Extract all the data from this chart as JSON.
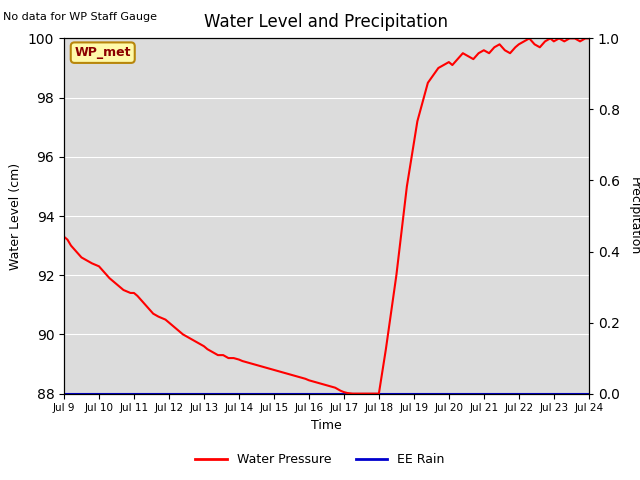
{
  "title": "Water Level and Precipitation",
  "no_data_text": "No data for WP Staff Gauge",
  "wp_met_label": "WP_met",
  "xlabel": "Time",
  "ylabel_left": "Water Level (cm)",
  "ylabel_right": "Precipitation",
  "ylim_left": [
    88,
    100
  ],
  "ylim_right": [
    0.0,
    1.0
  ],
  "yticks_left": [
    88,
    90,
    92,
    94,
    96,
    98,
    100
  ],
  "yticks_right": [
    0.0,
    0.2,
    0.4,
    0.6,
    0.8,
    1.0
  ],
  "xtick_labels": [
    "Jul 9",
    "Jul 10",
    "Jul 11",
    "Jul 12",
    "Jul 13",
    "Jul 14",
    "Jul 15",
    "Jul 16",
    "Jul 17",
    "Jul 18",
    "Jul 19",
    "Jul 20",
    "Jul 21",
    "Jul 22",
    "Jul 23",
    "Jul 24"
  ],
  "line_color_red": "#FF0000",
  "line_color_blue": "#0000CD",
  "bg_color": "#DCDCDC",
  "wp_met_box_color": "#FFFAAA",
  "wp_met_border_color": "#B8860B",
  "wp_met_text_color": "#8B0000",
  "legend_label_red": "Water Pressure",
  "legend_label_blue": "EE Rain",
  "wp_x": [
    0.0,
    0.1,
    0.2,
    0.35,
    0.5,
    0.65,
    0.8,
    1.0,
    1.15,
    1.3,
    1.5,
    1.7,
    1.9,
    2.0,
    2.1,
    2.25,
    2.4,
    2.55,
    2.7,
    2.9,
    3.0,
    3.1,
    3.25,
    3.4,
    3.55,
    3.7,
    3.85,
    4.0,
    4.1,
    4.25,
    4.4,
    4.55,
    4.7,
    4.85,
    5.0,
    5.1,
    5.25,
    5.4,
    5.55,
    5.7,
    5.85,
    6.0,
    6.15,
    6.3,
    6.45,
    6.6,
    6.75,
    6.9,
    7.0,
    7.15,
    7.3,
    7.45,
    7.6,
    7.75,
    7.9,
    8.0,
    8.1,
    8.25,
    8.4,
    8.6,
    8.8,
    9.0,
    9.2,
    9.5,
    9.8,
    10.1,
    10.4,
    10.7,
    11.0,
    11.1,
    11.25,
    11.4,
    11.55,
    11.7,
    11.85,
    12.0,
    12.15,
    12.3,
    12.45,
    12.6,
    12.75,
    12.9,
    13.0,
    13.15,
    13.3,
    13.45,
    13.6,
    13.75,
    13.9,
    14.0,
    14.15,
    14.3,
    14.45,
    14.6,
    14.75,
    14.9,
    15.0
  ],
  "wp_y": [
    93.3,
    93.2,
    93.0,
    92.8,
    92.6,
    92.5,
    92.4,
    92.3,
    92.1,
    91.9,
    91.7,
    91.5,
    91.4,
    91.4,
    91.3,
    91.1,
    90.9,
    90.7,
    90.6,
    90.5,
    90.4,
    90.3,
    90.15,
    90.0,
    89.9,
    89.8,
    89.7,
    89.6,
    89.5,
    89.4,
    89.3,
    89.3,
    89.2,
    89.2,
    89.15,
    89.1,
    89.05,
    89.0,
    88.95,
    88.9,
    88.85,
    88.8,
    88.75,
    88.7,
    88.65,
    88.6,
    88.55,
    88.5,
    88.45,
    88.4,
    88.35,
    88.3,
    88.25,
    88.2,
    88.1,
    88.05,
    88.02,
    88.0,
    88.0,
    88.0,
    88.0,
    88.0,
    89.5,
    92.0,
    95.0,
    97.2,
    98.5,
    99.0,
    99.2,
    99.1,
    99.3,
    99.5,
    99.4,
    99.3,
    99.5,
    99.6,
    99.5,
    99.7,
    99.8,
    99.6,
    99.5,
    99.7,
    99.8,
    99.9,
    100.0,
    99.8,
    99.7,
    99.9,
    100.0,
    99.9,
    100.0,
    99.9,
    100.0,
    100.0,
    99.9,
    100.0,
    100.0
  ]
}
